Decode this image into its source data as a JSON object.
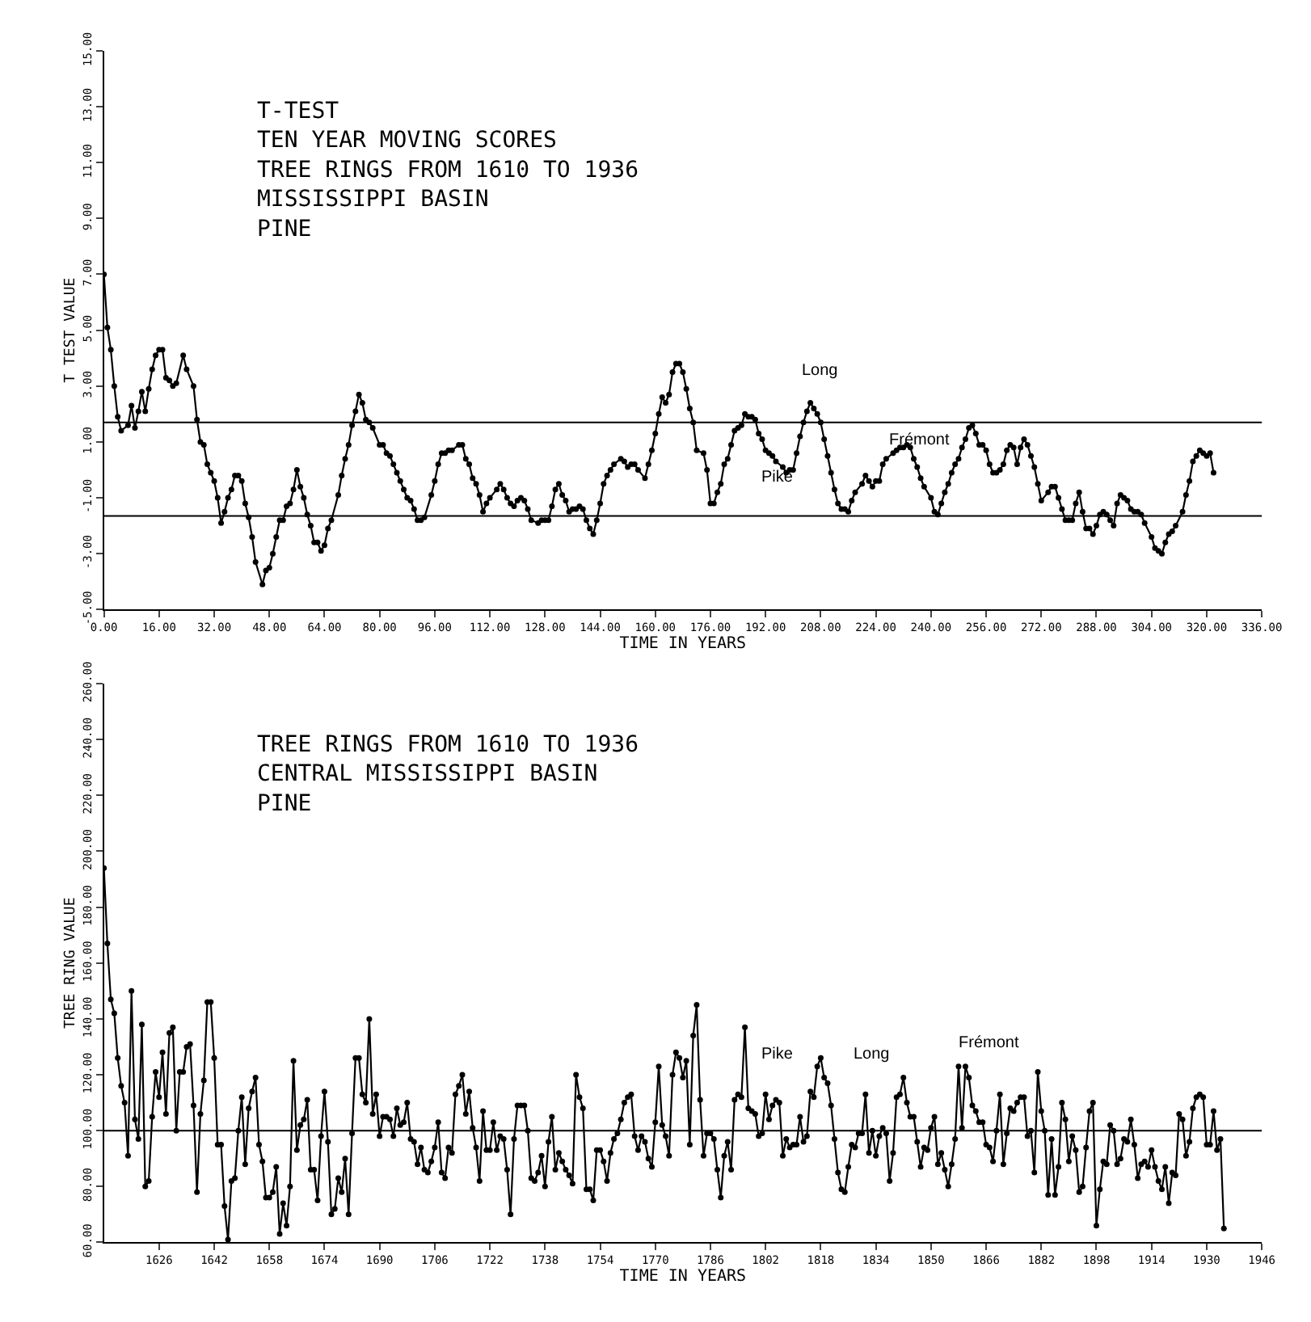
{
  "chart_data": [
    {
      "type": "line",
      "title": "T-TEST\nTEN YEAR MOVING SCORES\nTREE RINGS FROM 1610 TO 1936\nMISSISSIPPI BASIN\nPINE",
      "xlabel": "TIME IN YEARS",
      "ylabel": "T TEST VALUE",
      "xlim": [
        0,
        336
      ],
      "xticks": [
        {
          "value": 0,
          "label": "0.00"
        },
        {
          "value": 16,
          "label": "16.00"
        },
        {
          "value": 32,
          "label": "32.00"
        },
        {
          "value": 48,
          "label": "48.00"
        },
        {
          "value": 64,
          "label": "64.00"
        },
        {
          "value": 80,
          "label": "80.00"
        },
        {
          "value": 96,
          "label": "96.00"
        },
        {
          "value": 112,
          "label": "112.00"
        },
        {
          "value": 128,
          "label": "128.00"
        },
        {
          "value": 144,
          "label": "144.00"
        },
        {
          "value": 160,
          "label": "160.00"
        },
        {
          "value": 176,
          "label": "176.00"
        },
        {
          "value": 192,
          "label": "192.00"
        },
        {
          "value": 208,
          "label": "208.00"
        },
        {
          "value": 224,
          "label": "224.00"
        },
        {
          "value": 240,
          "label": "240.00"
        },
        {
          "value": 256,
          "label": "256.00"
        },
        {
          "value": 272,
          "label": "272.00"
        },
        {
          "value": 288,
          "label": "288.00"
        },
        {
          "value": 304,
          "label": "304.00"
        },
        {
          "value": 320,
          "label": "320.00"
        },
        {
          "value": 336,
          "label": "336.00"
        }
      ],
      "ylim": [
        -5,
        15
      ],
      "yticks": [
        {
          "value": -5,
          "label": "-5.00"
        },
        {
          "value": -3,
          "label": "-3.00"
        },
        {
          "value": -1,
          "label": "-1.00"
        },
        {
          "value": 1,
          "label": "1.00"
        },
        {
          "value": 3,
          "label": "3.00"
        },
        {
          "value": 5,
          "label": "5.00"
        },
        {
          "value": 7,
          "label": "7.00"
        },
        {
          "value": 9,
          "label": "9.00"
        },
        {
          "value": 11,
          "label": "11.00"
        },
        {
          "value": 13,
          "label": "13.00"
        },
        {
          "value": 15,
          "label": "15.00"
        }
      ],
      "grid": false,
      "marker": "circle",
      "line_style": "solid",
      "ref_lines": [
        {
          "axis": "y",
          "value": 1.7,
          "color": "#000000"
        },
        {
          "axis": "y",
          "value": -1.65,
          "color": "#000000"
        }
      ],
      "annotations": [
        "Pike",
        "Long",
        "Frémont"
      ],
      "series": [
        {
          "color": "#000000",
          "x": [
            0,
            1,
            2,
            3,
            4,
            5,
            7,
            8,
            9,
            10,
            11,
            12,
            13,
            14,
            15,
            16,
            17,
            18,
            19,
            20,
            21,
            23,
            24,
            26,
            27,
            28,
            29,
            30,
            31,
            32,
            33,
            34,
            35,
            36,
            37,
            38,
            39,
            40,
            41,
            42,
            43,
            44,
            46,
            47,
            48,
            49,
            50,
            51,
            52,
            53,
            54,
            55,
            56,
            57,
            58,
            59,
            60,
            61,
            62,
            63,
            64,
            65,
            66,
            68,
            69,
            70,
            71,
            72,
            73,
            74,
            75,
            76,
            77,
            78,
            80,
            81,
            82,
            83,
            84,
            85,
            86,
            87,
            88,
            89,
            90,
            91,
            92,
            93,
            95,
            96,
            97,
            98,
            99,
            100,
            101,
            103,
            104,
            105,
            106,
            107,
            108,
            109,
            110,
            111,
            112,
            114,
            115,
            116,
            117,
            118,
            119,
            120,
            121,
            122,
            123,
            124,
            126,
            127,
            128,
            129,
            130,
            131,
            132,
            133,
            134,
            135,
            136,
            137,
            138,
            139,
            140,
            141,
            142,
            143,
            144,
            145,
            146,
            147,
            148,
            150,
            151,
            152,
            153,
            154,
            155,
            157,
            158,
            159,
            160,
            161,
            162,
            163,
            164,
            165,
            166,
            167,
            168,
            169,
            170,
            171,
            172,
            174,
            175,
            176,
            177,
            178,
            179,
            180,
            181,
            182,
            183,
            184,
            185,
            186,
            187,
            188,
            189,
            190,
            191,
            192,
            193,
            194,
            195,
            197,
            198,
            199,
            200,
            201,
            202,
            203,
            204,
            205,
            206,
            207,
            208,
            209,
            210,
            211,
            212,
            213,
            214,
            215,
            216,
            217,
            218,
            220,
            221,
            222,
            223,
            224,
            225,
            226,
            227,
            229,
            230,
            231,
            232,
            233,
            234,
            235,
            236,
            237,
            238,
            240,
            241,
            242,
            243,
            244,
            245,
            246,
            247,
            248,
            249,
            250,
            251,
            252,
            253,
            254,
            255,
            256,
            257,
            258,
            259,
            260,
            261,
            262,
            263,
            264,
            265,
            266,
            267,
            268,
            269,
            270,
            271,
            272,
            274,
            275,
            276,
            277,
            278,
            279,
            280,
            281,
            282,
            283,
            284,
            285,
            286,
            287,
            288,
            289,
            290,
            291,
            292,
            293,
            294,
            295,
            296,
            297,
            298,
            299,
            300,
            301,
            302,
            304,
            305,
            306,
            307,
            308,
            309,
            310,
            311,
            313,
            314,
            315,
            316,
            317,
            318,
            319,
            320,
            321,
            322
          ],
          "values": [
            7.0,
            5.1,
            4.3,
            3.0,
            1.9,
            1.4,
            1.6,
            2.3,
            1.5,
            2.1,
            2.8,
            2.1,
            2.9,
            3.6,
            4.1,
            4.3,
            4.3,
            3.3,
            3.2,
            3.0,
            3.1,
            4.1,
            3.6,
            3.0,
            1.8,
            1.0,
            0.9,
            0.2,
            -0.1,
            -0.4,
            -1.0,
            -1.9,
            -1.5,
            -1.0,
            -0.7,
            -0.2,
            -0.2,
            -0.4,
            -1.2,
            -1.7,
            -2.4,
            -3.3,
            -4.1,
            -3.6,
            -3.5,
            -3.0,
            -2.4,
            -1.8,
            -1.8,
            -1.3,
            -1.2,
            -0.7,
            0.0,
            -0.6,
            -1.0,
            -1.6,
            -2.0,
            -2.6,
            -2.6,
            -2.9,
            -2.7,
            -2.1,
            -1.8,
            -0.9,
            -0.2,
            0.4,
            0.9,
            1.6,
            2.1,
            2.7,
            2.4,
            1.8,
            1.7,
            1.5,
            0.9,
            0.9,
            0.6,
            0.5,
            0.2,
            -0.1,
            -0.4,
            -0.7,
            -1.0,
            -1.1,
            -1.4,
            -1.8,
            -1.8,
            -1.7,
            -0.9,
            -0.4,
            0.2,
            0.6,
            0.6,
            0.7,
            0.7,
            0.9,
            0.9,
            0.4,
            0.2,
            -0.3,
            -0.5,
            -0.9,
            -1.5,
            -1.2,
            -1.0,
            -0.7,
            -0.5,
            -0.7,
            -1.0,
            -1.2,
            -1.3,
            -1.1,
            -1.0,
            -1.1,
            -1.4,
            -1.8,
            -1.9,
            -1.8,
            -1.8,
            -1.8,
            -1.3,
            -0.7,
            -0.5,
            -0.9,
            -1.1,
            -1.5,
            -1.4,
            -1.4,
            -1.3,
            -1.4,
            -1.8,
            -2.1,
            -2.3,
            -1.8,
            -1.2,
            -0.5,
            -0.2,
            0.0,
            0.2,
            0.4,
            0.3,
            0.1,
            0.2,
            0.2,
            0.0,
            -0.3,
            0.2,
            0.7,
            1.3,
            2.0,
            2.6,
            2.4,
            2.7,
            3.5,
            3.8,
            3.8,
            3.5,
            2.9,
            2.2,
            1.7,
            0.7,
            0.6,
            0.0,
            -1.2,
            -1.2,
            -0.8,
            -0.5,
            0.2,
            0.4,
            0.9,
            1.4,
            1.5,
            1.6,
            2.0,
            1.9,
            1.9,
            1.8,
            1.3,
            1.1,
            0.7,
            0.6,
            0.5,
            0.3,
            0.1,
            -0.1,
            0.0,
            0.0,
            0.6,
            1.2,
            1.7,
            2.1,
            2.4,
            2.2,
            2.0,
            1.7,
            1.1,
            0.5,
            -0.1,
            -0.7,
            -1.2,
            -1.4,
            -1.4,
            -1.5,
            -1.1,
            -0.8,
            -0.5,
            -0.2,
            -0.4,
            -0.6,
            -0.4,
            -0.4,
            0.2,
            0.4,
            0.6,
            0.7,
            0.8,
            0.8,
            0.9,
            0.8,
            0.4,
            0.1,
            -0.3,
            -0.6,
            -1.0,
            -1.5,
            -1.6,
            -1.2,
            -0.8,
            -0.5,
            -0.1,
            0.2,
            0.4,
            0.8,
            1.1,
            1.5,
            1.6,
            1.3,
            0.9,
            0.9,
            0.7,
            0.2,
            -0.1,
            -0.1,
            0.0,
            0.2,
            0.7,
            0.9,
            0.8,
            0.2,
            0.8,
            1.1,
            0.9,
            0.5,
            0.1,
            -0.5,
            -1.1,
            -0.8,
            -0.6,
            -0.6,
            -1.0,
            -1.4,
            -1.8,
            -1.8,
            -1.8,
            -1.2,
            -0.8,
            -1.5,
            -2.1,
            -2.1,
            -2.3,
            -2.0,
            -1.6,
            -1.5,
            -1.6,
            -1.8,
            -2.0,
            -1.2,
            -0.9,
            -1.0,
            -1.1,
            -1.4,
            -1.5,
            -1.5,
            -1.6,
            -1.9,
            -2.4,
            -2.8,
            -2.9,
            -3.0,
            -2.6,
            -2.3,
            -2.2,
            -2.0,
            -1.5,
            -0.9,
            -0.4,
            0.3,
            0.5,
            0.7,
            0.6,
            0.5,
            0.6,
            -0.1
          ]
        }
      ]
    },
    {
      "type": "line",
      "title": "TREE RINGS FROM 1610 TO 1936\nCENTRAL MISSISSIPPI BASIN\nPINE",
      "xlabel": "TIME IN YEARS",
      "ylabel": "TREE RING VALUE",
      "xlim": [
        1610,
        1946
      ],
      "xticks": [
        1626,
        1642,
        1658,
        1674,
        1690,
        1706,
        1722,
        1738,
        1754,
        1770,
        1786,
        1802,
        1818,
        1834,
        1850,
        1866,
        1882,
        1898,
        1914,
        1930,
        1946
      ],
      "ylim": [
        60,
        260
      ],
      "yticks": [
        {
          "value": 60,
          "label": "60.00"
        },
        {
          "value": 80,
          "label": "80.00"
        },
        {
          "value": 100,
          "label": "100.00"
        },
        {
          "value": 120,
          "label": "120.00"
        },
        {
          "value": 140,
          "label": "140.00"
        },
        {
          "value": 160,
          "label": "160.00"
        },
        {
          "value": 180,
          "label": "180.00"
        },
        {
          "value": 200,
          "label": "200.00"
        },
        {
          "value": 220,
          "label": "220.00"
        },
        {
          "value": 240,
          "label": "240.00"
        },
        {
          "value": 260,
          "label": "260.00"
        }
      ],
      "grid": false,
      "marker": "circle",
      "line_style": "solid",
      "ref_lines": [
        {
          "axis": "y",
          "value": 100,
          "color": "#000000"
        }
      ],
      "annotations": [
        "Pike",
        "Long",
        "Frémont"
      ],
      "series": [
        {
          "color": "#000000",
          "x": [
            1610,
            1611,
            1612,
            1613,
            1614,
            1615,
            1616,
            1617,
            1618,
            1619,
            1620,
            1621,
            1622,
            1623,
            1624,
            1625,
            1626,
            1627,
            1628,
            1629,
            1630,
            1631,
            1632,
            1633,
            1634,
            1635,
            1636,
            1637,
            1638,
            1639,
            1640,
            1641,
            1642,
            1643,
            1644,
            1645,
            1646,
            1647,
            1648,
            1649,
            1650,
            1651,
            1652,
            1653,
            1654,
            1655,
            1656,
            1657,
            1658,
            1659,
            1660,
            1661,
            1662,
            1663,
            1664,
            1665,
            1666,
            1667,
            1668,
            1669,
            1670,
            1671,
            1672,
            1673,
            1674,
            1675,
            1676,
            1677,
            1678,
            1679,
            1680,
            1681,
            1682,
            1683,
            1684,
            1685,
            1686,
            1687,
            1688,
            1689,
            1690,
            1691,
            1692,
            1693,
            1694,
            1695,
            1696,
            1697,
            1698,
            1699,
            1700,
            1701,
            1702,
            1703,
            1704,
            1705,
            1706,
            1707,
            1708,
            1709,
            1710,
            1711,
            1712,
            1713,
            1714,
            1715,
            1716,
            1717,
            1718,
            1719,
            1720,
            1721,
            1722,
            1723,
            1724,
            1725,
            1726,
            1727,
            1728,
            1729,
            1730,
            1731,
            1732,
            1733,
            1734,
            1735,
            1736,
            1737,
            1738,
            1739,
            1740,
            1741,
            1742,
            1743,
            1744,
            1745,
            1746,
            1747,
            1748,
            1749,
            1750,
            1751,
            1752,
            1753,
            1754,
            1755,
            1756,
            1757,
            1758,
            1759,
            1760,
            1761,
            1762,
            1763,
            1764,
            1765,
            1766,
            1767,
            1768,
            1769,
            1770,
            1771,
            1772,
            1773,
            1774,
            1775,
            1776,
            1777,
            1778,
            1779,
            1780,
            1781,
            1782,
            1783,
            1784,
            1785,
            1786,
            1787,
            1788,
            1789,
            1790,
            1791,
            1792,
            1793,
            1794,
            1795,
            1796,
            1797,
            1798,
            1799,
            1800,
            1801,
            1802,
            1803,
            1804,
            1805,
            1806,
            1807,
            1808,
            1809,
            1810,
            1811,
            1812,
            1813,
            1814,
            1815,
            1816,
            1817,
            1818,
            1819,
            1820,
            1821,
            1822,
            1823,
            1824,
            1825,
            1826,
            1827,
            1828,
            1829,
            1830,
            1831,
            1832,
            1833,
            1834,
            1835,
            1836,
            1837,
            1838,
            1839,
            1840,
            1841,
            1842,
            1843,
            1844,
            1845,
            1846,
            1847,
            1848,
            1849,
            1850,
            1851,
            1852,
            1853,
            1854,
            1855,
            1856,
            1857,
            1858,
            1859,
            1860,
            1861,
            1862,
            1863,
            1864,
            1865,
            1866,
            1867,
            1868,
            1869,
            1870,
            1871,
            1872,
            1873,
            1874,
            1875,
            1876,
            1877,
            1878,
            1879,
            1880,
            1881,
            1882,
            1883,
            1884,
            1885,
            1886,
            1887,
            1888,
            1889,
            1890,
            1891,
            1892,
            1893,
            1894,
            1895,
            1896,
            1897,
            1898,
            1899,
            1900,
            1901,
            1902,
            1903,
            1904,
            1905,
            1906,
            1907,
            1908,
            1909,
            1910,
            1911,
            1912,
            1913,
            1914,
            1915,
            1916,
            1917,
            1918,
            1919,
            1920,
            1921,
            1922,
            1923,
            1924,
            1925,
            1926,
            1927,
            1928,
            1929,
            1930,
            1931,
            1932,
            1933,
            1934,
            1935
          ],
          "values": [
            194,
            167,
            147,
            142,
            126,
            116,
            110,
            91,
            150,
            104,
            97,
            138,
            80,
            82,
            105,
            121,
            112,
            128,
            106,
            135,
            137,
            100,
            121,
            121,
            130,
            131,
            109,
            78,
            106,
            118,
            146,
            146,
            126,
            95,
            95,
            73,
            61,
            82,
            83,
            100,
            112,
            88,
            108,
            114,
            119,
            95,
            89,
            76,
            76,
            78,
            87,
            63,
            74,
            66,
            80,
            125,
            93,
            102,
            104,
            111,
            86,
            86,
            75,
            98,
            114,
            96,
            70,
            72,
            83,
            78,
            90,
            70,
            99,
            126,
            126,
            113,
            110,
            140,
            106,
            113,
            98,
            105,
            105,
            104,
            98,
            108,
            102,
            103,
            110,
            97,
            96,
            88,
            94,
            86,
            85,
            89,
            94,
            103,
            85,
            83,
            94,
            92,
            113,
            116,
            120,
            106,
            114,
            101,
            94,
            82,
            107,
            93,
            93,
            103,
            93,
            98,
            97,
            86,
            70,
            97,
            109,
            109,
            109,
            100,
            83,
            82,
            85,
            91,
            80,
            96,
            105,
            86,
            92,
            89,
            86,
            84,
            81,
            120,
            112,
            108,
            79,
            79,
            75,
            93,
            93,
            89,
            82,
            92,
            97,
            99,
            104,
            110,
            112,
            113,
            98,
            93,
            98,
            96,
            90,
            87,
            103,
            123,
            102,
            98,
            91,
            120,
            128,
            126,
            119,
            125,
            95,
            134,
            145,
            111,
            91,
            99,
            99,
            97,
            86,
            76,
            91,
            96,
            86,
            111,
            113,
            112,
            137,
            108,
            107,
            106,
            98,
            99,
            113,
            104,
            109,
            111,
            110,
            91,
            97,
            94,
            95,
            95,
            105,
            96,
            98,
            114,
            112,
            123,
            126,
            119,
            117,
            109,
            97,
            85,
            79,
            78,
            87,
            95,
            94,
            99,
            99,
            113,
            92,
            100,
            91,
            98,
            101,
            99,
            82,
            92,
            112,
            113,
            119,
            110,
            105,
            105,
            96,
            87,
            94,
            93,
            101,
            105,
            88,
            92,
            86,
            80,
            88,
            97,
            123,
            101,
            123,
            119,
            109,
            107,
            103,
            103,
            95,
            94,
            89,
            100,
            113,
            88,
            99,
            108,
            107,
            110,
            112,
            112,
            98,
            100,
            85,
            121,
            107,
            100,
            77,
            97,
            77,
            87,
            110,
            104,
            89,
            98,
            93,
            78,
            80,
            94,
            107,
            110,
            66,
            79,
            89,
            88,
            102,
            100,
            88,
            90,
            97,
            96,
            104,
            95,
            83,
            88,
            89,
            87,
            93,
            87,
            82,
            79,
            87,
            74,
            85,
            84,
            106,
            104,
            91,
            96,
            108,
            112,
            113,
            112,
            95,
            95,
            107,
            93,
            97,
            65
          ]
        }
      ]
    }
  ]
}
